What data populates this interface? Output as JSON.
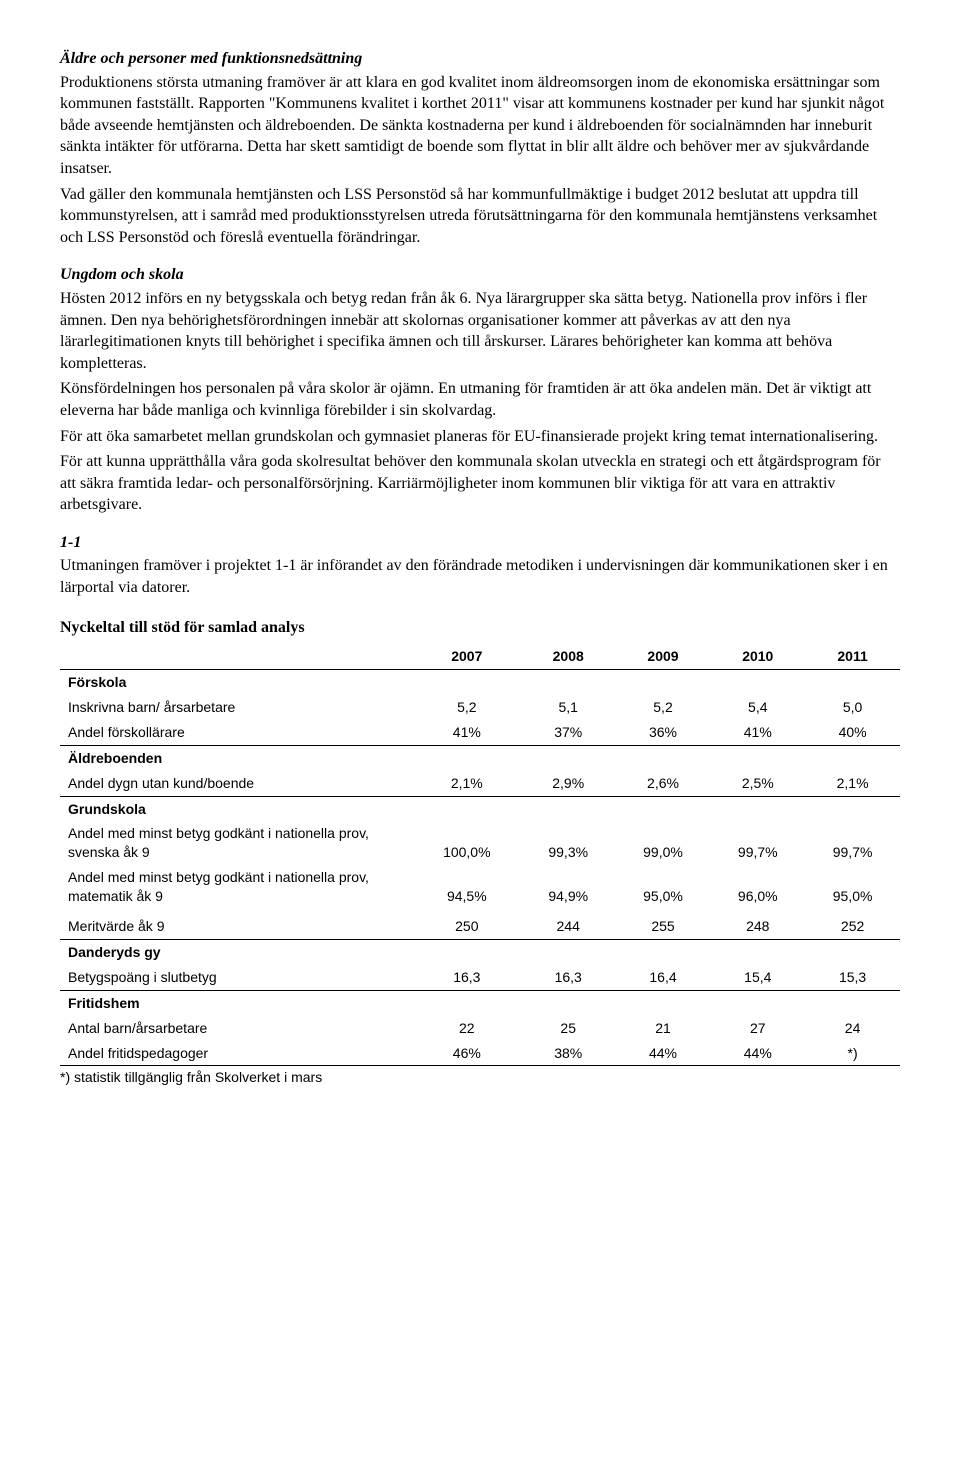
{
  "sections": {
    "s1": {
      "heading": "Äldre och personer med funktionsnedsättning",
      "p1": "Produktionens största utmaning framöver är att klara en god kvalitet inom äldreomsorgen inom de ekonomiska ersättningar som kommunen fastställt. Rapporten \"Kommunens kvalitet i korthet 2011\" visar att kommunens kostnader per kund har sjunkit något både avseende hemtjänsten och äldreboenden. De sänkta kostnaderna per kund i äldreboenden för socialnämnden har inneburit sänkta intäkter för utförarna. Detta har skett samtidigt de boende som flyttat in blir allt äldre och behöver mer av sjukvårdande insatser.",
      "p2": "Vad gäller den kommunala hemtjänsten och LSS Personstöd så har kommunfullmäktige i budget 2012 beslutat att uppdra till kommunstyrelsen, att i samråd med produktionsstyrelsen utreda förutsättningarna för den kommunala hemtjänstens verksamhet och LSS Personstöd och föreslå eventuella förändringar."
    },
    "s2": {
      "heading": "Ungdom och skola",
      "p1": "Hösten 2012 införs en ny betygsskala och betyg redan från åk 6. Nya lärargrupper ska sätta betyg. Nationella prov införs i fler ämnen. Den nya behörighetsförordningen innebär att skolornas organisationer kommer att påverkas av att den nya lärarlegitimationen knyts till behörighet i specifika ämnen och till årskurser. Lärares behörigheter kan komma att behöva kompletteras.",
      "p2": "Könsfördelningen hos personalen på våra skolor är ojämn. En utmaning för framtiden är att öka andelen män. Det är viktigt att eleverna har både manliga och kvinnliga förebilder i sin skolvardag.",
      "p3": "För att öka samarbetet mellan grundskolan och gymnasiet planeras för EU-finansierade projekt kring temat internationalisering.",
      "p4": "För att kunna upprätthålla våra goda skolresultat behöver den kommunala skolan utveckla en strategi och ett åtgärdsprogram för att säkra framtida ledar- och personalförsörjning. Karriärmöjligheter inom kommunen blir viktiga för att vara en attraktiv arbetsgivare."
    },
    "s3": {
      "heading": "1-1",
      "p1": "Utmaningen framöver i projektet 1-1 är införandet av den förändrade metodiken i undervisningen där kommunikationen sker i en lärportal via datorer."
    },
    "table_title": "Nyckeltal till stöd för samlad analys"
  },
  "table": {
    "columns": [
      "2007",
      "2008",
      "2009",
      "2010",
      "2011"
    ],
    "groups": {
      "forskola": {
        "label": "Förskola",
        "rows": [
          {
            "label": "Inskrivna barn/ årsarbetare",
            "vals": [
              "5,2",
              "5,1",
              "5,2",
              "5,4",
              "5,0"
            ]
          },
          {
            "label": "Andel förskollärare",
            "vals": [
              "41%",
              "37%",
              "36%",
              "41%",
              "40%"
            ]
          }
        ]
      },
      "aldreboenden": {
        "label": "Äldreboenden",
        "rows": [
          {
            "label": "Andel dygn utan kund/boende",
            "vals": [
              "2,1%",
              "2,9%",
              "2,6%",
              "2,5%",
              "2,1%"
            ]
          }
        ]
      },
      "grundskola": {
        "label": "Grundskola",
        "rows": [
          {
            "label": "Andel med minst betyg godkänt i nationella prov, svenska åk 9",
            "vals": [
              "100,0%",
              "99,3%",
              "99,0%",
              "99,7%",
              "99,7%"
            ]
          },
          {
            "label": "Andel med minst betyg godkänt i nationella prov, matematik åk 9",
            "vals": [
              "94,5%",
              "94,9%",
              "95,0%",
              "96,0%",
              "95,0%"
            ]
          },
          {
            "label": "Meritvärde åk 9",
            "vals": [
              "250",
              "244",
              "255",
              "248",
              "252"
            ]
          }
        ]
      },
      "danderyds": {
        "label": "Danderyds gy",
        "rows": [
          {
            "label": "Betygspoäng i slutbetyg",
            "vals": [
              "16,3",
              "16,3",
              "16,4",
              "15,4",
              "15,3"
            ]
          }
        ]
      },
      "fritidshem": {
        "label": "Fritidshem",
        "rows": [
          {
            "label": "Antal barn/årsarbetare",
            "vals": [
              "22",
              "25",
              "21",
              "27",
              "24"
            ]
          },
          {
            "label": "Andel fritidspedagoger",
            "vals": [
              "46%",
              "38%",
              "44%",
              "44%",
              "*)"
            ]
          }
        ]
      }
    },
    "footnote": "*) statistik tillgänglig från Skolverket i mars"
  }
}
